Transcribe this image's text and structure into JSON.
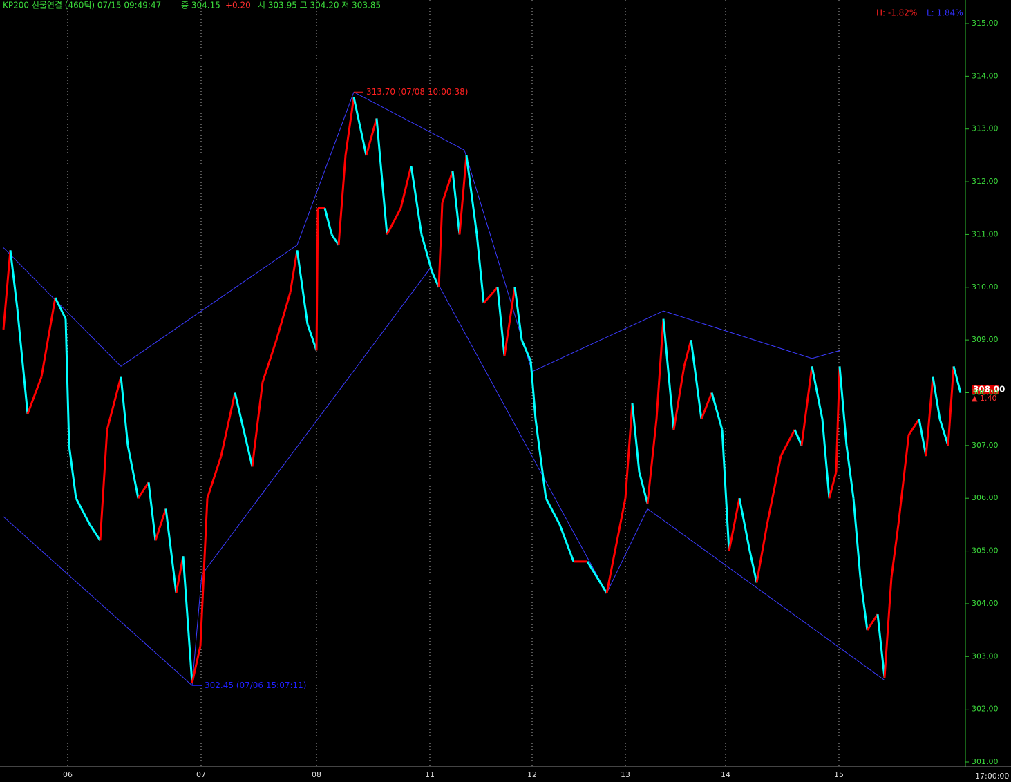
{
  "chart_data": {
    "type": "line",
    "header": {
      "title": "KP200 선물연결 (460틱) 07/15 09:49:47",
      "close": "종 304.15",
      "change": "+0.20",
      "ohl": "시 303.95 고 304.20 저 303.85"
    },
    "high_pct": "H: -1.82%",
    "low_pct": "L: 1.84%",
    "price_tag": "308.00",
    "change_tag": "▲ 1.40",
    "time_label": "17:00:00",
    "annotations": [
      {
        "text": "313.70 (07/08 10:00:38)",
        "x": 512,
        "y": 313.7,
        "color": "#ff2020"
      },
      {
        "text": "302.45 (07/06 15:07:11)",
        "x": 278,
        "y": 302.45,
        "color": "#2020ff"
      }
    ],
    "up_color": "#ff0000",
    "down_color": "#00ffff",
    "trend_color": "#3b3bff",
    "xlim": [
      0,
      1397
    ],
    "ylim": [
      301,
      315
    ],
    "xticks": [
      {
        "value": 98,
        "label": "06"
      },
      {
        "value": 291,
        "label": "07"
      },
      {
        "value": 458,
        "label": "08"
      },
      {
        "value": 622,
        "label": "11"
      },
      {
        "value": 770,
        "label": "12"
      },
      {
        "value": 905,
        "label": "13"
      },
      {
        "value": 1050,
        "label": "14"
      },
      {
        "value": 1214,
        "label": "15"
      }
    ],
    "yticks": [
      {
        "value": 301,
        "label": "301.00"
      },
      {
        "value": 302,
        "label": "302.00"
      },
      {
        "value": 303,
        "label": "303.00"
      },
      {
        "value": 304,
        "label": "304.00"
      },
      {
        "value": 305,
        "label": "305.00"
      },
      {
        "value": 306,
        "label": "306.00"
      },
      {
        "value": 307,
        "label": "307.00"
      },
      {
        "value": 308,
        "label": "308.00"
      },
      {
        "value": 309,
        "label": "309.00"
      },
      {
        "value": 310,
        "label": "310.00"
      },
      {
        "value": 311,
        "label": "311.00"
      },
      {
        "value": 312,
        "label": "312.00"
      },
      {
        "value": 313,
        "label": "313.00"
      },
      {
        "value": 314,
        "label": "314.00"
      },
      {
        "value": 315,
        "label": "315.00"
      }
    ],
    "series": [
      {
        "name": "KP200",
        "x": [
          5,
          15,
          25,
          40,
          60,
          80,
          95,
          100,
          110,
          130,
          145,
          155,
          175,
          185,
          200,
          215,
          225,
          240,
          255,
          265,
          278,
          290,
          300,
          320,
          340,
          365,
          380,
          400,
          420,
          430,
          445,
          458,
          460,
          470,
          480,
          490,
          500,
          512,
          530,
          545,
          560,
          580,
          595,
          610,
          625,
          635,
          640,
          655,
          665,
          675,
          690,
          700,
          720,
          730,
          745,
          755,
          768,
          775,
          790,
          810,
          830,
          850,
          878,
          890,
          905,
          915,
          925,
          937,
          950,
          960,
          975,
          990,
          1000,
          1015,
          1030,
          1045,
          1055,
          1070,
          1085,
          1095,
          1110,
          1130,
          1150,
          1160,
          1175,
          1190,
          1200,
          1210,
          1215,
          1225,
          1235,
          1245,
          1255,
          1270,
          1280,
          1290,
          1300,
          1315,
          1330,
          1340,
          1350,
          1360,
          1372,
          1380,
          1390
        ],
        "values": [
          309.2,
          310.7,
          309.6,
          307.6,
          308.3,
          309.8,
          309.4,
          307.0,
          306.0,
          305.5,
          305.2,
          307.3,
          308.3,
          307.0,
          306.0,
          306.3,
          305.2,
          305.8,
          304.2,
          304.9,
          302.5,
          303.2,
          306.0,
          306.8,
          308.0,
          306.6,
          308.2,
          309.0,
          309.9,
          310.7,
          309.3,
          308.8,
          311.5,
          311.5,
          311.0,
          310.8,
          312.5,
          313.6,
          312.5,
          313.2,
          311.0,
          311.5,
          312.3,
          311.0,
          310.3,
          310.0,
          311.6,
          312.2,
          311.0,
          312.5,
          311.0,
          309.7,
          310.0,
          308.7,
          310.0,
          309.0,
          308.6,
          307.5,
          306.0,
          305.5,
          304.8,
          304.8,
          304.2,
          305.0,
          306.0,
          307.8,
          306.5,
          305.9,
          307.5,
          309.4,
          307.3,
          308.5,
          309.0,
          307.5,
          308.0,
          307.3,
          305.0,
          306.0,
          305.0,
          304.4,
          305.5,
          306.8,
          307.3,
          307.0,
          308.5,
          307.5,
          306.0,
          306.5,
          308.5,
          307.0,
          306.0,
          304.5,
          303.5,
          303.8,
          302.6,
          304.5,
          305.5,
          307.2,
          307.5,
          306.8,
          308.3,
          307.5,
          307.0,
          308.5,
          308.0
        ]
      }
    ],
    "trend_lines": [
      {
        "x": [
          5,
          175,
          430,
          512,
          672,
          770,
          960,
          1175,
          1215
        ],
        "values": [
          310.75,
          308.5,
          310.8,
          313.7,
          312.6,
          308.4,
          309.55,
          308.65,
          308.8
        ]
      },
      {
        "x": [
          5,
          278,
          292,
          622,
          878,
          937,
          1280
        ],
        "values": [
          305.65,
          302.45,
          304.55,
          310.35,
          304.2,
          305.8,
          302.55
        ]
      }
    ]
  }
}
